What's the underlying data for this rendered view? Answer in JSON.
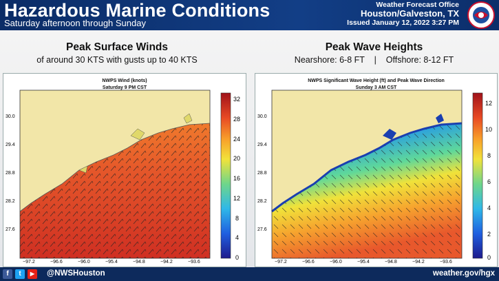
{
  "header": {
    "title": "Hazardous Marine Conditions",
    "subtitle": "Saturday afternoon through Sunday",
    "office": "Weather Forecast Office",
    "city": "Houston/Galveston, TX",
    "issued": "Issued January 12, 2022 3:27 PM",
    "logo_text": "NATIONAL WEATHER SERVICE"
  },
  "left_panel": {
    "heading": "Peak Surface Winds",
    "detail": "of around 30 KTS with gusts up to 40 KTS",
    "map_title_1": "NWPS Wind (knots)",
    "map_title_2": "Saturday 9 PM CST",
    "colorbar_ticks": [
      "32",
      "28",
      "24",
      "20",
      "16",
      "12",
      "8",
      "4",
      "0"
    ],
    "lat_ticks": [
      "30.0",
      "29.4",
      "28.8",
      "28.2",
      "27.6"
    ],
    "lon_ticks": [
      "−97.2",
      "−96.6",
      "−96.0",
      "−95.4",
      "−94.8",
      "−94.2",
      "−93.6"
    ]
  },
  "right_panel": {
    "heading": "Peak Wave Heights",
    "nearshore": "Nearshore: 6-8 FT",
    "separator": "|",
    "offshore": "Offshore: 8-12 FT",
    "map_title_1": "NWPS Significant Wave Height (ft) and Peak Wave Direction",
    "map_title_2": "Sunday 3 AM CST",
    "colorbar_ticks": [
      "12",
      "10",
      "8",
      "6",
      "4",
      "2",
      "0"
    ],
    "lat_ticks": [
      "30.0",
      "29.4",
      "28.8",
      "28.2",
      "27.6"
    ],
    "lon_ticks": [
      "−97.2",
      "−96.6",
      "−96.0",
      "−95.4",
      "−94.8",
      "−94.2",
      "−93.6"
    ]
  },
  "footer": {
    "handle": "@NWSHouston",
    "url": "weather.gov/hgx",
    "facebook_label": "f",
    "twitter_label": "t",
    "youtube_label": "▶"
  },
  "colors": {
    "header_bg": "#123e86",
    "land": "#f2e6a8",
    "wind_high": "#d9402a",
    "wave_low": "#1f6fd6",
    "wave_high": "#e85a2e"
  }
}
